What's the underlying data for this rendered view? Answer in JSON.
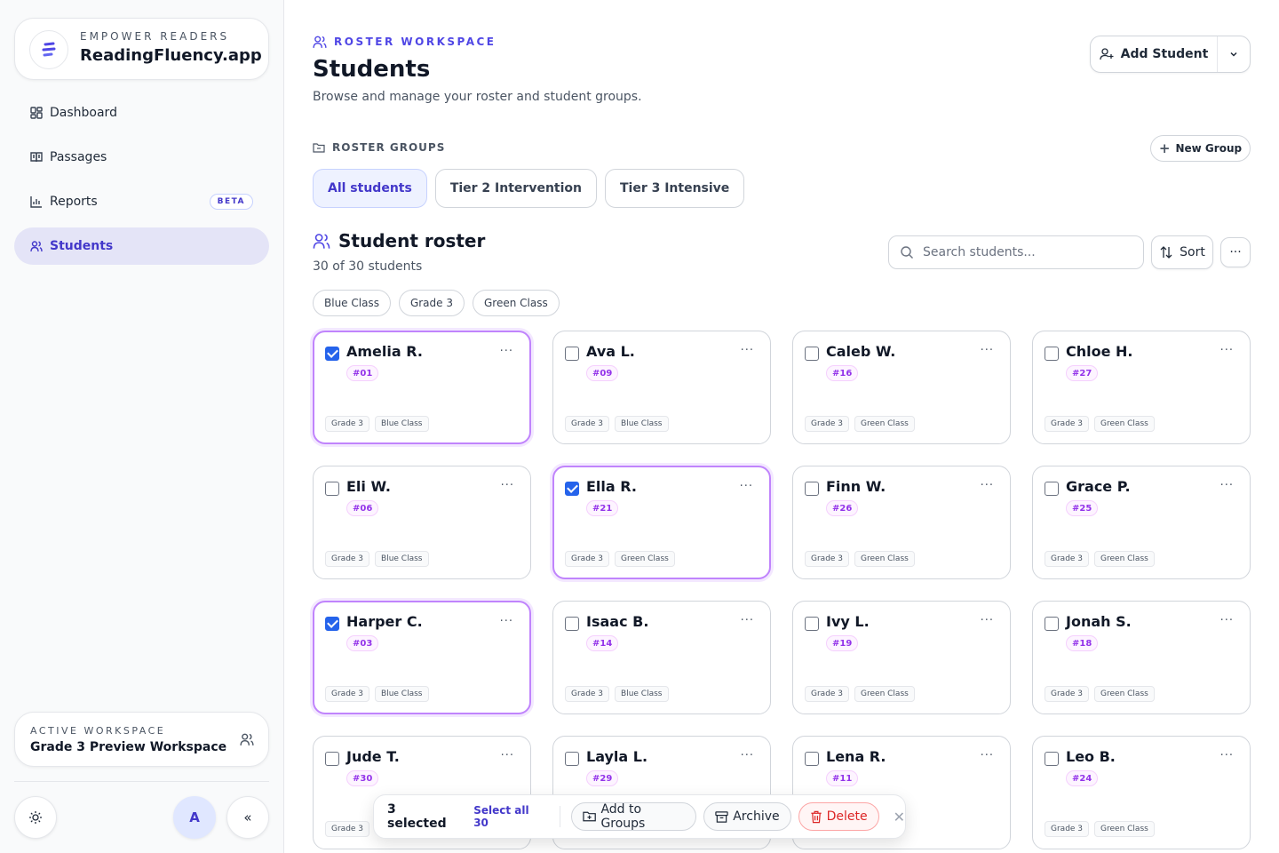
{
  "brand": {
    "subtitle": "EMPOWER READERS",
    "title": "ReadingFluency.app"
  },
  "nav": [
    {
      "label": "Dashboard",
      "icon": "dashboard-icon"
    },
    {
      "label": "Passages",
      "icon": "book-icon"
    },
    {
      "label": "Reports",
      "icon": "bar-chart-icon",
      "badge": "BETA"
    },
    {
      "label": "Students",
      "icon": "users-icon",
      "active": true
    }
  ],
  "workspace": {
    "label": "ACTIVE WORKSPACE",
    "name": "Grade 3 Preview Workspace"
  },
  "footer": {
    "avatar": "A",
    "collapse": "«"
  },
  "header": {
    "eyebrow": "ROSTER WORKSPACE",
    "title": "Students",
    "subtitle": "Browse and manage your roster and student groups.",
    "add_label": "Add Student"
  },
  "groups": {
    "label": "ROSTER GROUPS",
    "new_label": "New Group",
    "tabs": [
      "All students",
      "Tier 2 Intervention",
      "Tier 3 Intensive"
    ]
  },
  "roster": {
    "title": "Student roster",
    "count": "30 of 30 students",
    "search_placeholder": "Search students...",
    "sort_label": "Sort",
    "more": "···",
    "chips": [
      "Blue Class",
      "Grade 3",
      "Green Class"
    ]
  },
  "students": [
    {
      "name": "Amelia R.",
      "num": "#01",
      "grade": "Grade 3",
      "cls": "Blue Class",
      "selected": true
    },
    {
      "name": "Ava L.",
      "num": "#09",
      "grade": "Grade 3",
      "cls": "Blue Class",
      "selected": false
    },
    {
      "name": "Caleb W.",
      "num": "#16",
      "grade": "Grade 3",
      "cls": "Green Class",
      "selected": false
    },
    {
      "name": "Chloe H.",
      "num": "#27",
      "grade": "Grade 3",
      "cls": "Green Class",
      "selected": false
    },
    {
      "name": "Eli W.",
      "num": "#06",
      "grade": "Grade 3",
      "cls": "Blue Class",
      "selected": false
    },
    {
      "name": "Ella R.",
      "num": "#21",
      "grade": "Grade 3",
      "cls": "Green Class",
      "selected": true
    },
    {
      "name": "Finn W.",
      "num": "#26",
      "grade": "Grade 3",
      "cls": "Green Class",
      "selected": false
    },
    {
      "name": "Grace P.",
      "num": "#25",
      "grade": "Grade 3",
      "cls": "Green Class",
      "selected": false
    },
    {
      "name": "Harper C.",
      "num": "#03",
      "grade": "Grade 3",
      "cls": "Blue Class",
      "selected": true
    },
    {
      "name": "Isaac B.",
      "num": "#14",
      "grade": "Grade 3",
      "cls": "Blue Class",
      "selected": false
    },
    {
      "name": "Ivy L.",
      "num": "#19",
      "grade": "Grade 3",
      "cls": "Green Class",
      "selected": false
    },
    {
      "name": "Jonah S.",
      "num": "#18",
      "grade": "Grade 3",
      "cls": "Green Class",
      "selected": false
    },
    {
      "name": "Jude T.",
      "num": "#30",
      "grade": "Grade 3",
      "cls": "",
      "selected": false
    },
    {
      "name": "Layla L.",
      "num": "#29",
      "grade": "",
      "cls": "",
      "selected": false
    },
    {
      "name": "Lena R.",
      "num": "#11",
      "grade": "",
      "cls": "",
      "selected": false
    },
    {
      "name": "Leo B.",
      "num": "#24",
      "grade": "Grade 3",
      "cls": "Green Class",
      "selected": false
    }
  ],
  "bulk": {
    "count": "3 selected",
    "select_all": "Select all 30",
    "add_groups": "Add to Groups",
    "archive": "Archive",
    "delete": "Delete",
    "close": "✕"
  },
  "colors": {
    "accent": "#4f46e5",
    "selected_border": "#c084fc",
    "danger": "#dc2626",
    "checkbox": "#2563eb"
  }
}
